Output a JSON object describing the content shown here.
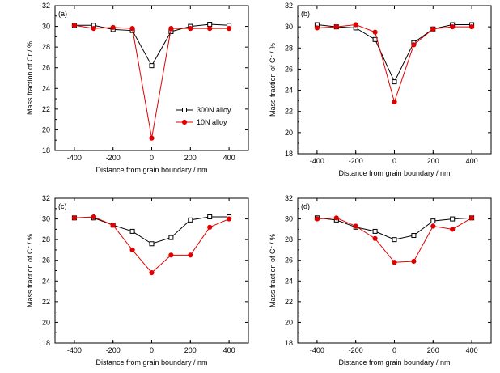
{
  "colors": {
    "series_300N": "#000000",
    "series_10N": "#e00000"
  },
  "legend": {
    "items": [
      "300N alloy",
      "10N alloy"
    ],
    "placement": "panel (a), right-middle"
  },
  "chart_data": [
    {
      "panel_label": "(a)",
      "type": "line",
      "xlabel": "Distance from grain boundary / nm",
      "ylabel": "Mass fraction of Cr / %",
      "xlim": [
        -500,
        500
      ],
      "ylim": [
        18,
        32
      ],
      "xticks": [
        -400,
        -200,
        0,
        200,
        400
      ],
      "yticks": [
        18,
        20,
        22,
        24,
        26,
        28,
        30,
        32
      ],
      "xtick_labels": [
        "-400",
        "-200",
        "0",
        "200",
        "400"
      ],
      "ytick_labels": [
        "18",
        "20",
        "22",
        "24",
        "26",
        "28",
        "30",
        "32"
      ],
      "grid": false,
      "series": [
        {
          "name": "300N alloy",
          "marker": "open-square",
          "x": [
            -400,
            -300,
            -200,
            -100,
            0,
            100,
            200,
            300,
            400
          ],
          "y": [
            30.1,
            30.1,
            29.7,
            29.6,
            26.2,
            29.5,
            30.0,
            30.2,
            30.1
          ]
        },
        {
          "name": "10N alloy",
          "marker": "filled-circle",
          "x": [
            -400,
            -300,
            -200,
            -100,
            0,
            100,
            200,
            300,
            400
          ],
          "y": [
            30.1,
            29.8,
            29.9,
            29.8,
            19.2,
            29.8,
            29.8,
            29.8,
            29.8
          ]
        }
      ]
    },
    {
      "panel_label": "(b)",
      "type": "line",
      "xlabel": "Distance from grain boundary / nm",
      "ylabel": "Mass fraction of Cr / %",
      "xlim": [
        -500,
        500
      ],
      "ylim": [
        18,
        32
      ],
      "xticks": [
        -400,
        -200,
        0,
        200,
        400
      ],
      "yticks": [
        18,
        20,
        22,
        24,
        26,
        28,
        30,
        32
      ],
      "xtick_labels": [
        "-400",
        "-200",
        "0",
        "200",
        "400"
      ],
      "ytick_labels": [
        "18",
        "20",
        "22",
        "24",
        "26",
        "28",
        "30",
        "32"
      ],
      "grid": false,
      "series": [
        {
          "name": "300N alloy",
          "marker": "open-square",
          "x": [
            -400,
            -300,
            -200,
            -100,
            0,
            100,
            200,
            300,
            400
          ],
          "y": [
            30.2,
            30.0,
            29.9,
            28.8,
            24.8,
            28.5,
            29.8,
            30.2,
            30.2
          ]
        },
        {
          "name": "10N alloy",
          "marker": "filled-circle",
          "x": [
            -400,
            -300,
            -200,
            -100,
            0,
            100,
            200,
            300,
            400
          ],
          "y": [
            29.9,
            30.0,
            30.2,
            29.5,
            22.9,
            28.3,
            29.8,
            30.0,
            30.0
          ]
        }
      ]
    },
    {
      "panel_label": "(c)",
      "type": "line",
      "xlabel": "Distance from grain boundary / nm",
      "ylabel": "Mass fraction of Cr / %",
      "xlim": [
        -500,
        500
      ],
      "ylim": [
        18,
        32
      ],
      "xticks": [
        -400,
        -200,
        0,
        200,
        400
      ],
      "yticks": [
        18,
        20,
        22,
        24,
        26,
        28,
        30,
        32
      ],
      "xtick_labels": [
        "-400",
        "-200",
        "0",
        "200",
        "400"
      ],
      "ytick_labels": [
        "18",
        "20",
        "22",
        "24",
        "26",
        "28",
        "30",
        "32"
      ],
      "grid": false,
      "series": [
        {
          "name": "300N alloy",
          "marker": "open-square",
          "x": [
            -400,
            -300,
            -200,
            -100,
            0,
            100,
            200,
            300,
            400
          ],
          "y": [
            30.1,
            30.1,
            29.4,
            28.8,
            27.6,
            28.2,
            29.9,
            30.2,
            30.2
          ]
        },
        {
          "name": "10N alloy",
          "marker": "filled-circle",
          "x": [
            -400,
            -300,
            -200,
            -100,
            0,
            100,
            200,
            300,
            400
          ],
          "y": [
            30.1,
            30.2,
            29.4,
            27.0,
            24.8,
            26.5,
            26.5,
            29.2,
            30.0
          ]
        }
      ]
    },
    {
      "panel_label": "(d)",
      "type": "line",
      "xlabel": "Distance from grain boundary / nm",
      "ylabel": "Mass fraction of Cr / %",
      "xlim": [
        -500,
        500
      ],
      "ylim": [
        18,
        32
      ],
      "xticks": [
        -400,
        -200,
        0,
        200,
        400
      ],
      "yticks": [
        18,
        20,
        22,
        24,
        26,
        28,
        30,
        32
      ],
      "xtick_labels": [
        "-400",
        "-200",
        "0",
        "200",
        "400"
      ],
      "ytick_labels": [
        "18",
        "20",
        "22",
        "24",
        "26",
        "28",
        "30",
        "32"
      ],
      "grid": false,
      "series": [
        {
          "name": "300N alloy",
          "marker": "open-square",
          "x": [
            -400,
            -300,
            -200,
            -100,
            0,
            100,
            200,
            300,
            400
          ],
          "y": [
            30.1,
            29.9,
            29.2,
            28.8,
            28.0,
            28.4,
            29.8,
            30.0,
            30.1
          ]
        },
        {
          "name": "10N alloy",
          "marker": "filled-circle",
          "x": [
            -400,
            -300,
            -200,
            -100,
            0,
            100,
            200,
            300,
            400
          ],
          "y": [
            30.0,
            30.1,
            29.3,
            28.1,
            25.8,
            25.9,
            29.3,
            29.0,
            30.1
          ]
        }
      ]
    }
  ]
}
